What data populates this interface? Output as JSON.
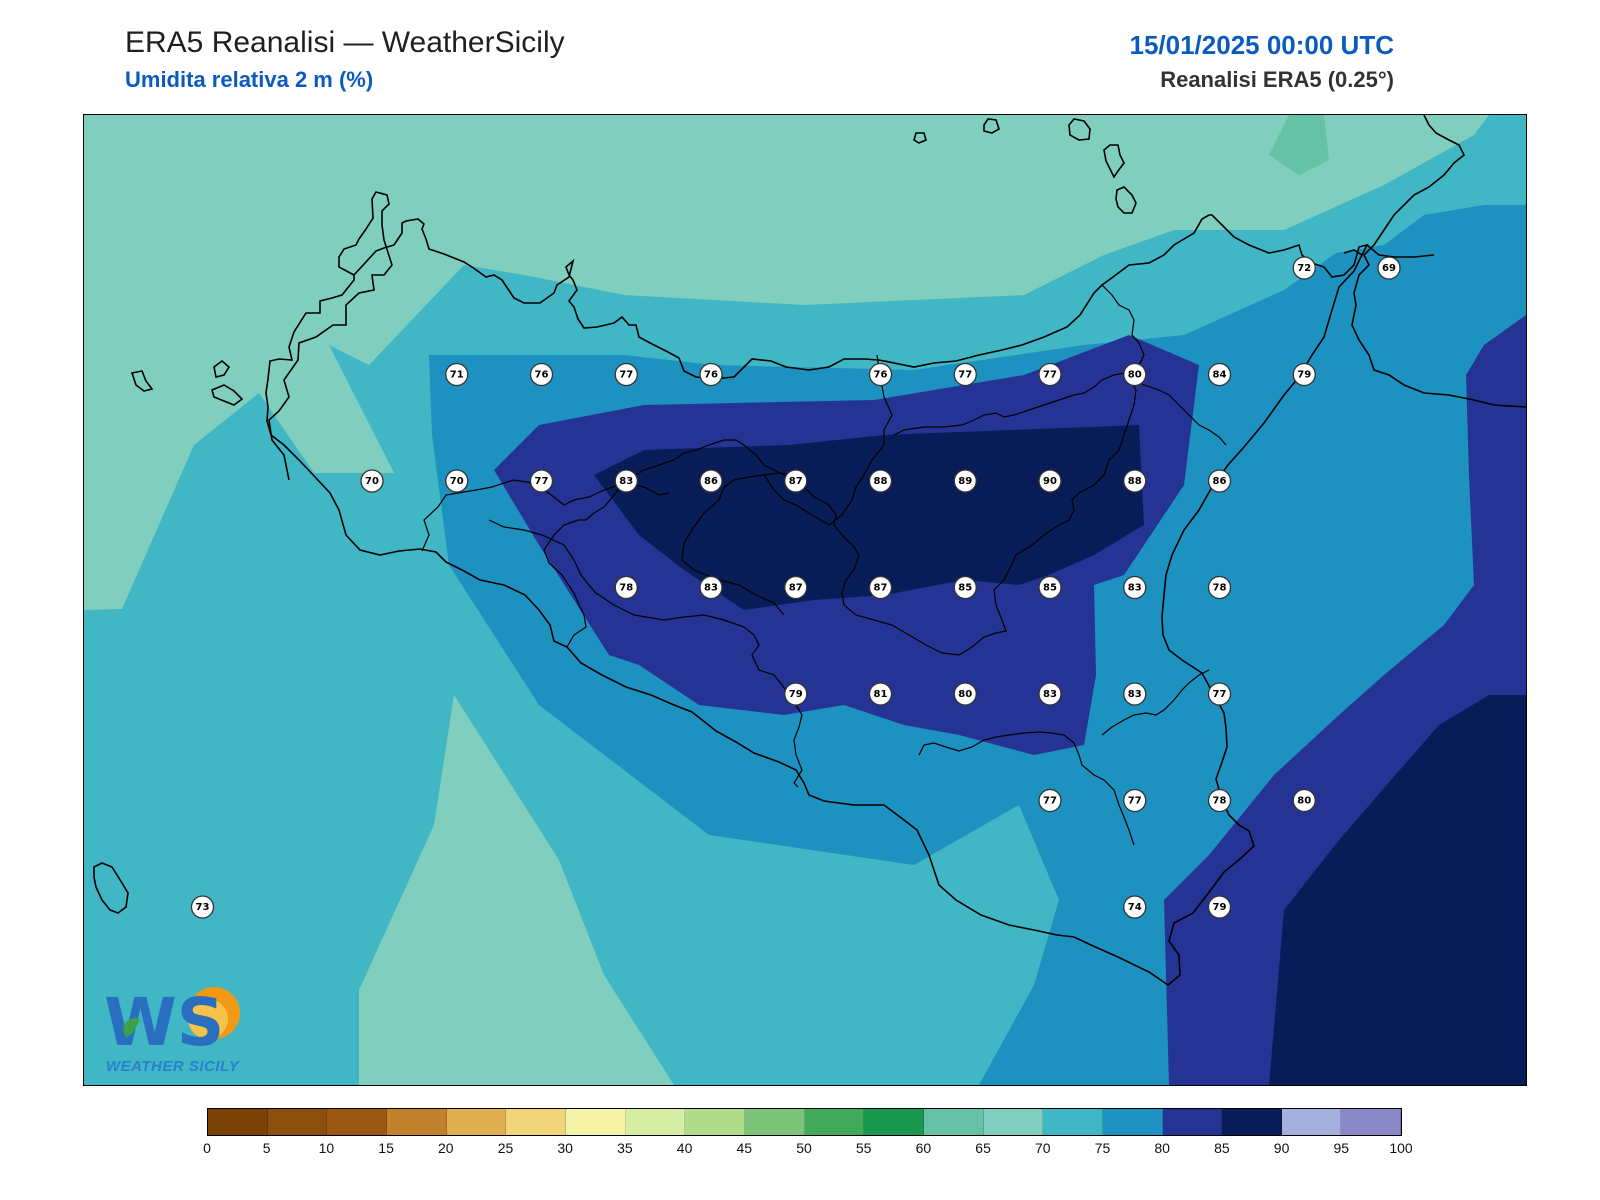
{
  "header": {
    "title": "ERA5 Reanalisi — WeatherSicily",
    "subtitle": "Umidita relativa 2 m (%)",
    "datetime": "15/01/2025 00:00 UTC",
    "source": "Reanalisi ERA5 (0.25°)"
  },
  "stations": [
    {
      "value": "71",
      "lon": 12.75,
      "lat": 38.25
    },
    {
      "value": "76",
      "lon": 13.0,
      "lat": 38.25
    },
    {
      "value": "77",
      "lon": 13.25,
      "lat": 38.25
    },
    {
      "value": "76",
      "lon": 13.5,
      "lat": 38.25
    },
    {
      "value": "76",
      "lon": 14.0,
      "lat": 38.25
    },
    {
      "value": "77",
      "lon": 14.25,
      "lat": 38.25
    },
    {
      "value": "77",
      "lon": 14.5,
      "lat": 38.25
    },
    {
      "value": "80",
      "lon": 14.75,
      "lat": 38.25
    },
    {
      "value": "84",
      "lon": 15.0,
      "lat": 38.25
    },
    {
      "value": "79",
      "lon": 15.25,
      "lat": 38.25
    },
    {
      "value": "72",
      "lon": 15.25,
      "lat": 38.5
    },
    {
      "value": "69",
      "lon": 15.5,
      "lat": 38.5
    },
    {
      "value": "70",
      "lon": 12.5,
      "lat": 38.0
    },
    {
      "value": "70",
      "lon": 12.75,
      "lat": 38.0
    },
    {
      "value": "77",
      "lon": 13.0,
      "lat": 38.0
    },
    {
      "value": "83",
      "lon": 13.25,
      "lat": 38.0
    },
    {
      "value": "86",
      "lon": 13.5,
      "lat": 38.0
    },
    {
      "value": "87",
      "lon": 13.75,
      "lat": 38.0
    },
    {
      "value": "88",
      "lon": 14.0,
      "lat": 38.0
    },
    {
      "value": "89",
      "lon": 14.25,
      "lat": 38.0
    },
    {
      "value": "90",
      "lon": 14.5,
      "lat": 38.0
    },
    {
      "value": "88",
      "lon": 14.75,
      "lat": 38.0
    },
    {
      "value": "86",
      "lon": 15.0,
      "lat": 38.0
    },
    {
      "value": "78",
      "lon": 13.25,
      "lat": 37.75
    },
    {
      "value": "83",
      "lon": 13.5,
      "lat": 37.75
    },
    {
      "value": "87",
      "lon": 13.75,
      "lat": 37.75
    },
    {
      "value": "87",
      "lon": 14.0,
      "lat": 37.75
    },
    {
      "value": "85",
      "lon": 14.25,
      "lat": 37.75
    },
    {
      "value": "85",
      "lon": 14.5,
      "lat": 37.75
    },
    {
      "value": "83",
      "lon": 14.75,
      "lat": 37.75
    },
    {
      "value": "78",
      "lon": 15.0,
      "lat": 37.75
    },
    {
      "value": "79",
      "lon": 13.75,
      "lat": 37.5
    },
    {
      "value": "81",
      "lon": 14.0,
      "lat": 37.5
    },
    {
      "value": "80",
      "lon": 14.25,
      "lat": 37.5
    },
    {
      "value": "83",
      "lon": 14.5,
      "lat": 37.5
    },
    {
      "value": "83",
      "lon": 14.75,
      "lat": 37.5
    },
    {
      "value": "77",
      "lon": 15.0,
      "lat": 37.5
    },
    {
      "value": "77",
      "lon": 14.5,
      "lat": 37.25
    },
    {
      "value": "77",
      "lon": 14.75,
      "lat": 37.25
    },
    {
      "value": "78",
      "lon": 15.0,
      "lat": 37.25
    },
    {
      "value": "80",
      "lon": 15.25,
      "lat": 37.25
    },
    {
      "value": "74",
      "lon": 14.75,
      "lat": 37.0
    },
    {
      "value": "79",
      "lon": 15.0,
      "lat": 37.0
    },
    {
      "value": "73",
      "lon": 12.0,
      "lat": 37.0
    }
  ],
  "colorbar": {
    "labels": [
      "0",
      "5",
      "10",
      "15",
      "20",
      "25",
      "30",
      "35",
      "40",
      "45",
      "50",
      "55",
      "60",
      "65",
      "70",
      "75",
      "80",
      "85",
      "90",
      "95",
      "100"
    ],
    "colors": [
      "#7a4205",
      "#8c4f0e",
      "#9a5812",
      "#c0802c",
      "#e0b050",
      "#f0d47a",
      "#f5f3a6",
      "#d8eda4",
      "#b0dd8c",
      "#7bc47a",
      "#40a95a",
      "#1a9850",
      "#66c2a4",
      "#80cebe",
      "#41b6c4",
      "#1d91c0",
      "#253494",
      "#081d58",
      "#a6b0dd",
      "#8c88c8"
    ]
  },
  "logo": {
    "text": "WS",
    "caption": "WEATHER SICILY"
  }
}
